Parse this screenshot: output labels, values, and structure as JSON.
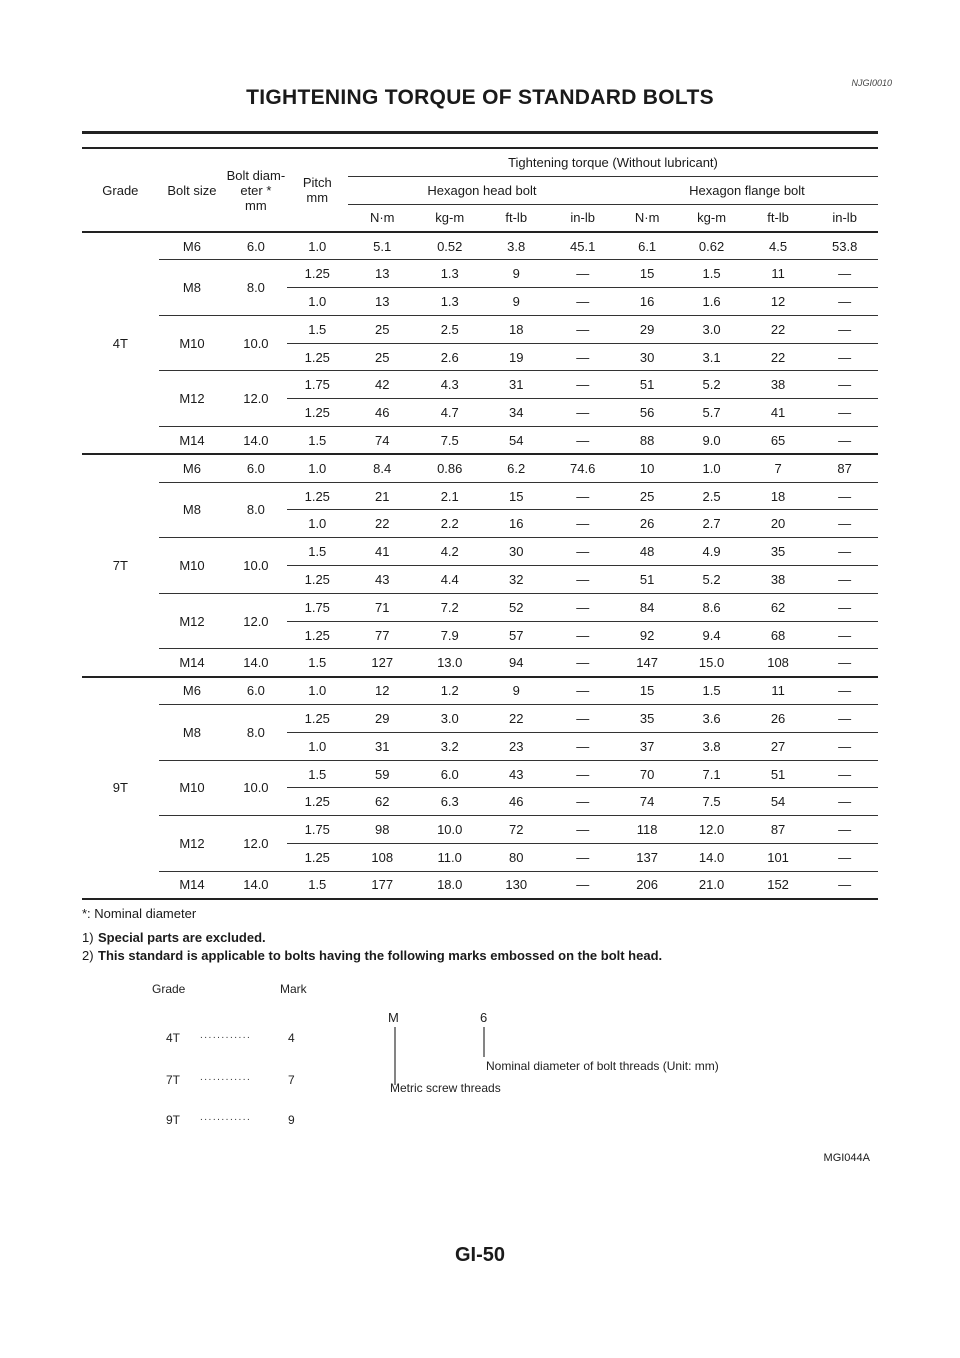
{
  "doc_code": "NJGI0010",
  "title": "TIGHTENING TORQUE OF STANDARD BOLTS",
  "table": {
    "headers": {
      "grade": "Grade",
      "bolt_size": "Bolt size",
      "bolt_diameter": "Bolt diam-\neter *\nmm",
      "pitch": "Pitch\nmm",
      "tightening_torque": "Tightening torque (Without lubricant)",
      "hex_head": "Hexagon head bolt",
      "hex_flange": "Hexagon flange bolt",
      "units": [
        "N·m",
        "kg-m",
        "ft-lb",
        "in-lb",
        "N·m",
        "kg-m",
        "ft-lb",
        "in-lb"
      ]
    },
    "grades": [
      {
        "grade": "4T",
        "sizes": [
          {
            "size": "M6",
            "diameter": "6.0",
            "rows": [
              [
                "1.0",
                "5.1",
                "0.52",
                "3.8",
                "45.1",
                "6.1",
                "0.62",
                "4.5",
                "53.8"
              ]
            ]
          },
          {
            "size": "M8",
            "diameter": "8.0",
            "rows": [
              [
                "1.25",
                "13",
                "1.3",
                "9",
                "—",
                "15",
                "1.5",
                "11",
                "—"
              ],
              [
                "1.0",
                "13",
                "1.3",
                "9",
                "—",
                "16",
                "1.6",
                "12",
                "—"
              ]
            ]
          },
          {
            "size": "M10",
            "diameter": "10.0",
            "rows": [
              [
                "1.5",
                "25",
                "2.5",
                "18",
                "—",
                "29",
                "3.0",
                "22",
                "—"
              ],
              [
                "1.25",
                "25",
                "2.6",
                "19",
                "—",
                "30",
                "3.1",
                "22",
                "—"
              ]
            ]
          },
          {
            "size": "M12",
            "diameter": "12.0",
            "rows": [
              [
                "1.75",
                "42",
                "4.3",
                "31",
                "—",
                "51",
                "5.2",
                "38",
                "—"
              ],
              [
                "1.25",
                "46",
                "4.7",
                "34",
                "—",
                "56",
                "5.7",
                "41",
                "—"
              ]
            ]
          },
          {
            "size": "M14",
            "diameter": "14.0",
            "rows": [
              [
                "1.5",
                "74",
                "7.5",
                "54",
                "—",
                "88",
                "9.0",
                "65",
                "—"
              ]
            ]
          }
        ]
      },
      {
        "grade": "7T",
        "sizes": [
          {
            "size": "M6",
            "diameter": "6.0",
            "rows": [
              [
                "1.0",
                "8.4",
                "0.86",
                "6.2",
                "74.6",
                "10",
                "1.0",
                "7",
                "87"
              ]
            ]
          },
          {
            "size": "M8",
            "diameter": "8.0",
            "rows": [
              [
                "1.25",
                "21",
                "2.1",
                "15",
                "—",
                "25",
                "2.5",
                "18",
                "—"
              ],
              [
                "1.0",
                "22",
                "2.2",
                "16",
                "—",
                "26",
                "2.7",
                "20",
                "—"
              ]
            ]
          },
          {
            "size": "M10",
            "diameter": "10.0",
            "rows": [
              [
                "1.5",
                "41",
                "4.2",
                "30",
                "—",
                "48",
                "4.9",
                "35",
                "—"
              ],
              [
                "1.25",
                "43",
                "4.4",
                "32",
                "—",
                "51",
                "5.2",
                "38",
                "—"
              ]
            ]
          },
          {
            "size": "M12",
            "diameter": "12.0",
            "rows": [
              [
                "1.75",
                "71",
                "7.2",
                "52",
                "—",
                "84",
                "8.6",
                "62",
                "—"
              ],
              [
                "1.25",
                "77",
                "7.9",
                "57",
                "—",
                "92",
                "9.4",
                "68",
                "—"
              ]
            ]
          },
          {
            "size": "M14",
            "diameter": "14.0",
            "rows": [
              [
                "1.5",
                "127",
                "13.0",
                "94",
                "—",
                "147",
                "15.0",
                "108",
                "—"
              ]
            ]
          }
        ]
      },
      {
        "grade": "9T",
        "sizes": [
          {
            "size": "M6",
            "diameter": "6.0",
            "rows": [
              [
                "1.0",
                "12",
                "1.2",
                "9",
                "—",
                "15",
                "1.5",
                "11",
                "—"
              ]
            ]
          },
          {
            "size": "M8",
            "diameter": "8.0",
            "rows": [
              [
                "1.25",
                "29",
                "3.0",
                "22",
                "—",
                "35",
                "3.6",
                "26",
                "—"
              ],
              [
                "1.0",
                "31",
                "3.2",
                "23",
                "—",
                "37",
                "3.8",
                "27",
                "—"
              ]
            ]
          },
          {
            "size": "M10",
            "diameter": "10.0",
            "rows": [
              [
                "1.5",
                "59",
                "6.0",
                "43",
                "—",
                "70",
                "7.1",
                "51",
                "—"
              ],
              [
                "1.25",
                "62",
                "6.3",
                "46",
                "—",
                "74",
                "7.5",
                "54",
                "—"
              ]
            ]
          },
          {
            "size": "M12",
            "diameter": "12.0",
            "rows": [
              [
                "1.75",
                "98",
                "10.0",
                "72",
                "—",
                "118",
                "12.0",
                "87",
                "—"
              ],
              [
                "1.25",
                "108",
                "11.0",
                "80",
                "—",
                "137",
                "14.0",
                "101",
                "—"
              ]
            ]
          },
          {
            "size": "M14",
            "diameter": "14.0",
            "rows": [
              [
                "1.5",
                "177",
                "18.0",
                "130",
                "—",
                "206",
                "21.0",
                "152",
                "—"
              ]
            ]
          }
        ]
      }
    ]
  },
  "footnote": "*: Nominal diameter",
  "notes": [
    {
      "num": "1)",
      "text": "Special parts are excluded."
    },
    {
      "num": "2)",
      "text": "This standard is applicable to bolts having the following marks embossed on the bolt head."
    }
  ],
  "figure": {
    "grade_header": "Grade",
    "mark_header": "Mark",
    "dots": "............",
    "rows": [
      {
        "grade": "4T",
        "mark": "4"
      },
      {
        "grade": "7T",
        "mark": "7"
      },
      {
        "grade": "9T",
        "mark": "9"
      }
    ],
    "m_label": "M",
    "six_label": "6",
    "nominal_text": "Nominal diameter of bolt threads (Unit: mm)",
    "metric_text": "Metric screw threads",
    "code": "MGI044A"
  },
  "page_number": "GI-50"
}
